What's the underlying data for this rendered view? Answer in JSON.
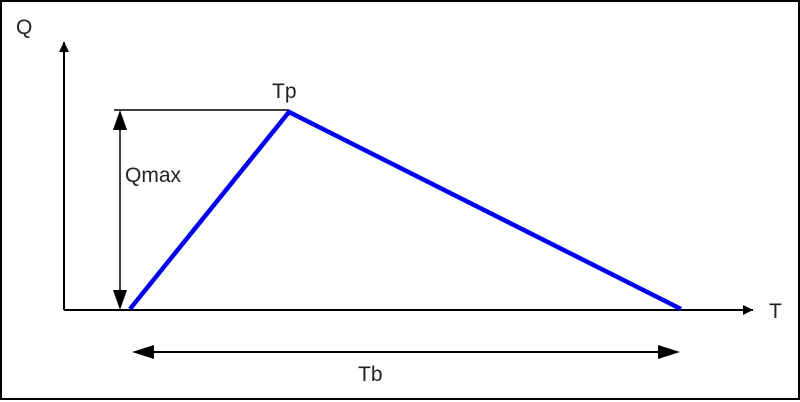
{
  "labels": {
    "y_axis": "Q",
    "x_axis": "T",
    "peak": "Tp",
    "peak_flow": "Qmax",
    "base_time": "Tb"
  },
  "colors": {
    "hydrograph": "#0000ee",
    "axes": "#000000",
    "frame": "#000000"
  }
}
